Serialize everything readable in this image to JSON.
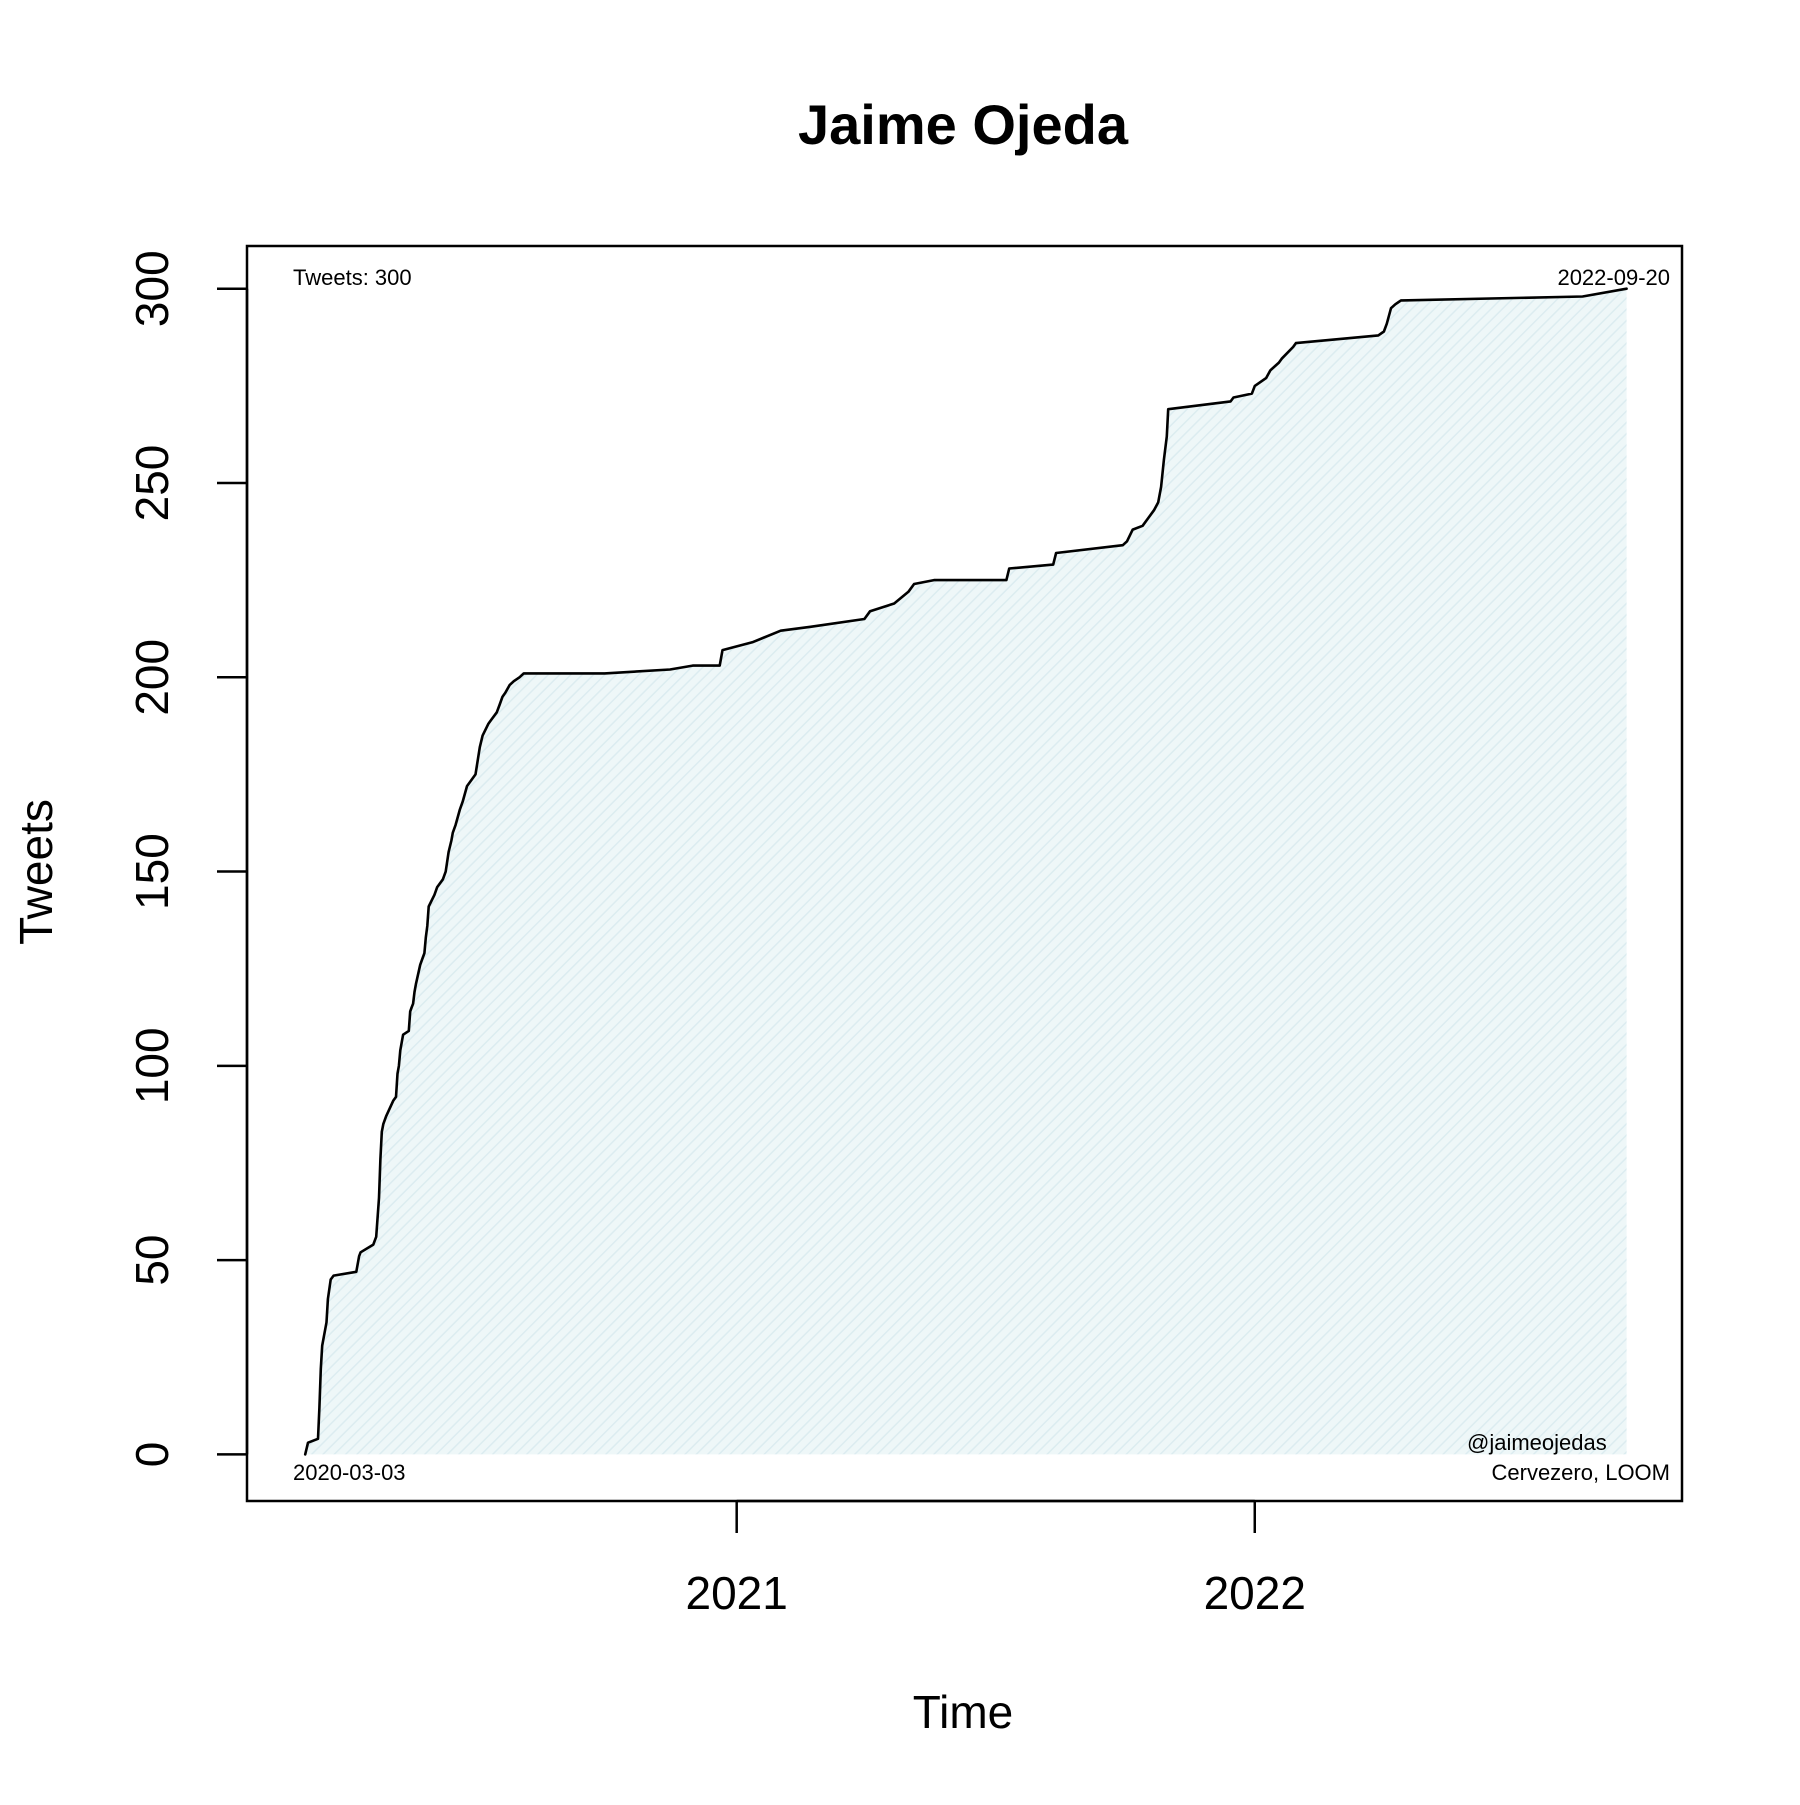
{
  "chart_data": {
    "type": "area",
    "title": "Jaime Ojeda",
    "xlabel": "Time",
    "ylabel": "Tweets",
    "xlim": [
      "2020-01-22",
      "2022-10-29"
    ],
    "ylim": [
      -12,
      311
    ],
    "x_ticks": [
      {
        "date": "2021-01-01",
        "label": "2021"
      },
      {
        "date": "2022-01-01",
        "label": "2022"
      }
    ],
    "y_ticks": [
      0,
      50,
      100,
      150,
      200,
      250,
      300
    ],
    "y_tick_labels": [
      "0",
      "50",
      "100",
      "150",
      "200",
      "250",
      "300"
    ],
    "annotations": {
      "top_left": "Tweets: 300",
      "top_right": "2022-09-20",
      "bottom_left": "2020-03-03",
      "bottom_right_line1": "@jaimeojedas",
      "bottom_right_line2": "Cervezero, LOOM"
    },
    "colors": {
      "line": "#000000",
      "fill": "#eaf5f7",
      "hatch": "#dcecf0"
    },
    "grid": false,
    "series": [
      {
        "x": [
          "2020-03-03",
          "2020-03-05",
          "2020-03-12",
          "2020-03-13",
          "2020-03-14",
          "2020-03-15",
          "2020-03-18",
          "2020-03-19",
          "2020-03-21",
          "2020-03-23",
          "2020-04-08",
          "2020-04-10",
          "2020-04-11",
          "2020-04-20",
          "2020-04-22",
          "2020-04-24",
          "2020-04-25",
          "2020-04-26",
          "2020-04-27",
          "2020-04-28",
          "2020-04-29",
          "2020-05-04",
          "2020-05-06",
          "2020-05-07",
          "2020-05-08",
          "2020-05-09",
          "2020-05-10",
          "2020-05-11",
          "2020-05-15",
          "2020-05-16",
          "2020-05-17",
          "2020-05-18",
          "2020-05-19",
          "2020-05-20",
          "2020-05-23",
          "2020-05-25",
          "2020-05-26",
          "2020-05-27",
          "2020-05-28",
          "2020-05-29",
          "2020-06-02",
          "2020-06-04",
          "2020-06-08",
          "2020-06-10",
          "2020-06-12",
          "2020-06-14",
          "2020-06-15",
          "2020-06-16",
          "2020-06-17",
          "2020-06-20",
          "2020-06-22",
          "2020-06-25",
          "2020-07-01",
          "2020-07-04",
          "2020-07-06",
          "2020-07-10",
          "2020-07-12",
          "2020-07-16",
          "2020-07-18",
          "2020-07-20",
          "2020-07-22",
          "2020-07-25",
          "2020-07-28",
          "2020-08-01",
          "2020-08-04",
          "2020-08-06",
          "2020-08-08",
          "2020-08-10",
          "2020-08-14",
          "2020-08-20",
          "2020-08-25",
          "2020-08-30",
          "2020-09-02",
          "2020-09-06",
          "2020-09-12",
          "2020-09-18",
          "2020-09-20",
          "2020-09-30",
          "2020-11-15",
          "2020-12-01",
          "2020-12-20",
          "2020-12-22",
          "2021-01-12",
          "2021-02-01",
          "2021-02-22",
          "2021-04-01",
          "2021-04-05",
          "2021-04-22",
          "2021-05-02",
          "2021-05-06",
          "2021-05-20",
          "2021-07-10",
          "2021-07-12",
          "2021-08-12",
          "2021-08-14",
          "2021-09-30",
          "2021-10-03",
          "2021-10-07",
          "2021-10-14",
          "2021-10-18",
          "2021-10-22",
          "2021-10-25",
          "2021-10-27",
          "2021-10-29",
          "2021-10-31",
          "2021-11-01",
          "2021-12-15",
          "2021-12-17",
          "2021-12-30",
          "2022-01-01",
          "2022-01-09",
          "2022-01-12",
          "2022-01-18",
          "2022-01-20",
          "2022-01-28",
          "2022-01-30",
          "2022-03-29",
          "2022-04-02",
          "2022-04-04",
          "2022-04-07",
          "2022-04-10",
          "2022-04-14",
          "2022-04-15",
          "2022-08-20",
          "2022-09-20"
        ],
        "y": [
          0,
          3,
          4,
          12,
          22,
          28,
          34,
          40,
          45,
          46,
          47,
          51,
          52,
          54,
          56,
          66,
          76,
          83,
          85,
          86,
          87,
          91,
          92,
          98,
          100,
          104,
          106,
          108,
          109,
          114,
          115,
          116,
          119,
          121,
          126,
          128,
          129,
          133,
          136,
          141,
          144,
          146,
          148,
          150,
          155,
          158,
          160,
          161,
          162,
          166,
          168,
          172,
          175,
          182,
          185,
          188,
          189,
          191,
          193,
          195,
          196,
          198,
          199,
          200,
          201,
          201,
          201,
          201,
          201,
          201,
          201,
          201,
          201,
          201,
          201,
          201,
          201,
          201,
          202,
          203,
          203,
          207,
          209,
          212,
          213,
          215,
          217,
          219,
          222,
          224,
          225,
          225,
          228,
          229,
          232,
          234,
          235,
          238,
          239,
          241,
          243,
          245,
          249,
          256,
          262,
          269,
          271,
          272,
          273,
          275,
          277,
          279,
          281,
          282,
          285,
          286,
          288,
          289,
          291,
          295,
          296,
          297,
          297,
          298,
          300
        ]
      }
    ]
  }
}
